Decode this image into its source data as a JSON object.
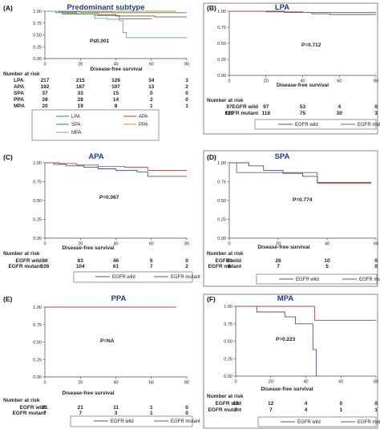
{
  "colors": {
    "axis": "#444444",
    "frame": "#555555",
    "title": "#1f3c88",
    "egfr_wild": "#3e5a7d",
    "egfr_mutant": "#a84a4a",
    "lpa": "#3a6ea5",
    "apa": "#a43c3c",
    "spa": "#2e8b57",
    "ppa": "#c5a000",
    "mpa": "#6aa89e"
  },
  "chart_data": [
    {
      "panel": "(A)",
      "type": "line",
      "title": "Predominant subtype",
      "xlabel": "Disease-free survival",
      "ylabel": "",
      "xlim": [
        0,
        80
      ],
      "ylim": [
        0,
        1
      ],
      "xticks": [
        "0",
        "20",
        "40",
        "60",
        "80"
      ],
      "yticks": [
        "0.00",
        "0.25",
        "0.50",
        "0.75",
        "1.00"
      ],
      "pvalue": "P≤0.001",
      "series": [
        {
          "name": "LPA",
          "color_key": "lpa",
          "x": [
            0,
            8,
            20,
            38,
            60,
            80
          ],
          "y": [
            1.0,
            0.99,
            0.98,
            0.97,
            0.97,
            0.97
          ]
        },
        {
          "name": "APA",
          "color_key": "apa",
          "x": [
            0,
            6,
            18,
            30,
            40,
            62,
            80
          ],
          "y": [
            1.0,
            0.97,
            0.95,
            0.93,
            0.9,
            0.88,
            0.88
          ]
        },
        {
          "name": "SPA",
          "color_key": "spa",
          "x": [
            0,
            10,
            28,
            42,
            60
          ],
          "y": [
            1.0,
            0.94,
            0.91,
            0.84,
            0.84
          ]
        },
        {
          "name": "PPA",
          "color_key": "ppa",
          "x": [
            0,
            74
          ],
          "y": [
            1.0,
            1.0
          ]
        },
        {
          "name": "MPA",
          "color_key": "mpa",
          "x": [
            0,
            12,
            28,
            35,
            42,
            44,
            46,
            80
          ],
          "y": [
            1.0,
            0.95,
            0.85,
            0.83,
            0.8,
            0.55,
            0.44,
            0.44
          ]
        }
      ],
      "risk": {
        "header": "Number at risk",
        "rows": [
          {
            "label": "LPA",
            "values": [
              "217",
              "215",
              "128",
              "34",
              "3"
            ]
          },
          {
            "label": "APA",
            "values": [
              "192",
              "187",
              "107",
              "13",
              "2"
            ]
          },
          {
            "label": "SPA",
            "values": [
              "37",
              "33",
              "15",
              "0",
              "0"
            ]
          },
          {
            "label": "PPA",
            "values": [
              "28",
              "28",
              "14",
              "2",
              "0"
            ]
          },
          {
            "label": "MPA",
            "values": [
              "20",
              "19",
              "8",
              "1",
              "1"
            ]
          }
        ]
      },
      "legend_rows": [
        [
          "LPA",
          "APA"
        ],
        [
          "SPA",
          "PPA"
        ],
        [
          "MPA"
        ]
      ]
    },
    {
      "panel": "(B)",
      "type": "line",
      "title": "LPA",
      "xlabel": "Disease-free survival",
      "ylabel": "",
      "xlim": [
        0,
        80
      ],
      "ylim": [
        0,
        1
      ],
      "xticks": [
        "0",
        "20",
        "40",
        "60",
        "80"
      ],
      "yticks": [
        "0.00",
        "0.25",
        "0.50",
        "0.75",
        "1.00"
      ],
      "pvalue": "P=0.712",
      "series": [
        {
          "name": "EGFR wild",
          "color_key": "egfr_wild",
          "x": [
            0,
            30,
            45,
            55,
            65,
            80
          ],
          "y": [
            1.0,
            0.98,
            0.96,
            0.95,
            0.95,
            0.95
          ]
        },
        {
          "name": "EGFR mutant",
          "color_key": "egfr_mutant",
          "x": [
            0,
            20,
            40,
            60,
            80
          ],
          "y": [
            1.0,
            0.99,
            0.98,
            0.98,
            0.98
          ]
        }
      ],
      "risk": {
        "header": "Number at risk",
        "rows": [
          {
            "label": "EGFR wild",
            "values": [
              "97",
              "97",
              "53",
              "4",
              "0"
            ]
          },
          {
            "label": "EGFR mutant",
            "values": [
              "120",
              "118",
              "75",
              "30",
              "3"
            ]
          }
        ]
      },
      "legend_rows": [
        [
          "EGFR wild",
          "EGFR mutant"
        ]
      ]
    },
    {
      "panel": "(C)",
      "type": "line",
      "title": "APA",
      "xlabel": "Disease-free survival",
      "ylabel": "",
      "xlim": [
        0,
        80
      ],
      "ylim": [
        0,
        1
      ],
      "xticks": [
        "0",
        "20",
        "40",
        "60",
        "80"
      ],
      "yticks": [
        "0.00",
        "0.25",
        "0.50",
        "0.75",
        "1.00"
      ],
      "pvalue": "P=0.067",
      "series": [
        {
          "name": "EGFR wild",
          "color_key": "egfr_wild",
          "x": [
            0,
            5,
            12,
            22,
            30,
            40,
            52,
            58,
            80
          ],
          "y": [
            1.0,
            0.98,
            0.96,
            0.94,
            0.92,
            0.9,
            0.88,
            0.82,
            0.82
          ]
        },
        {
          "name": "EGFR mutant",
          "color_key": "egfr_mutant",
          "x": [
            0,
            8,
            18,
            30,
            45,
            58,
            80
          ],
          "y": [
            1.0,
            0.99,
            0.97,
            0.95,
            0.94,
            0.9,
            0.9
          ]
        }
      ],
      "risk": {
        "header": "Number at risk",
        "rows": [
          {
            "label": "EGFR wild",
            "values": [
              "86",
              "83",
              "46",
              "6",
              "0"
            ]
          },
          {
            "label": "EGFR mutant",
            "values": [
              "106",
              "104",
              "61",
              "7",
              "2"
            ]
          }
        ]
      },
      "legend_rows": [
        [
          "EGFR wild",
          "EGFR mutant"
        ]
      ]
    },
    {
      "panel": "(D)",
      "type": "line",
      "title": "SPA",
      "xlabel": "Disease-free survival",
      "ylabel": "",
      "xlim": [
        0,
        60
      ],
      "ylim": [
        0,
        1
      ],
      "xticks": [
        "0",
        "20",
        "40",
        "60"
      ],
      "yticks": [
        "0.00",
        "0.25",
        "0.50",
        "0.75",
        "1.00"
      ],
      "pvalue": "P=0.774",
      "series": [
        {
          "name": "EGFR wild",
          "color_key": "egfr_wild",
          "x": [
            0,
            8,
            14,
            22,
            30,
            36,
            58
          ],
          "y": [
            1.0,
            0.96,
            0.9,
            0.86,
            0.82,
            0.74,
            0.74
          ]
        },
        {
          "name": "EGFR mutant",
          "color_key": "egfr_mutant",
          "x": [
            0,
            3,
            30,
            36,
            58
          ],
          "y": [
            1.0,
            0.87,
            0.87,
            0.73,
            0.73
          ]
        }
      ],
      "risk": {
        "header": "Number at risk",
        "rows": [
          {
            "label": "EGFR wild",
            "values": [
              "29",
              "26",
              "10",
              "0"
            ]
          },
          {
            "label": "EGFR mutant",
            "values": [
              "8",
              "7",
              "5",
              "0"
            ]
          }
        ]
      },
      "legend_rows": [
        [
          "EGFR wild",
          "EGFR mutant"
        ]
      ]
    },
    {
      "panel": "(E)",
      "type": "line",
      "title": "PPA",
      "xlabel": "Disease-free survival",
      "ylabel": "",
      "xlim": [
        0,
        80
      ],
      "ylim": [
        0,
        1
      ],
      "xticks": [
        "0",
        "20",
        "40",
        "60",
        "80"
      ],
      "yticks": [
        "0.00",
        "0.25",
        "0.50",
        "0.75",
        "1.00"
      ],
      "pvalue": "P=NA",
      "series": [
        {
          "name": "EGFR wild",
          "color_key": "egfr_wild",
          "x": [
            0,
            74
          ],
          "y": [
            1.0,
            1.0
          ]
        },
        {
          "name": "EGFR mutant",
          "color_key": "egfr_mutant",
          "x": [
            0,
            74
          ],
          "y": [
            1.0,
            1.0
          ]
        }
      ],
      "risk": {
        "header": "Number at risk",
        "rows": [
          {
            "label": "EGFR wild",
            "values": [
              "21",
              "21",
              "11",
              "1",
              "0"
            ]
          },
          {
            "label": "EGFR mutant",
            "values": [
              "7",
              "7",
              "3",
              "1",
              "0"
            ]
          }
        ]
      },
      "legend_rows": [
        [
          "EGFR wild",
          "EGFR mutant"
        ]
      ]
    },
    {
      "panel": "(F)",
      "type": "line",
      "title": "MPA",
      "xlabel": "Disease-free survival",
      "ylabel": "",
      "xlim": [
        0,
        80
      ],
      "ylim": [
        0,
        1
      ],
      "xticks": [
        "0",
        "20",
        "40",
        "60",
        "80"
      ],
      "yticks": [
        "0.00",
        "0.25",
        "0.50",
        "0.75",
        "1.00"
      ],
      "pvalue": "P=0.223",
      "series": [
        {
          "name": "EGFR wild",
          "color_key": "egfr_wild",
          "x": [
            0,
            12,
            28,
            34,
            43,
            44,
            45,
            46
          ],
          "y": [
            1.0,
            0.92,
            0.85,
            0.75,
            0.75,
            0.38,
            0.38,
            0.0
          ]
        },
        {
          "name": "EGFR mutant",
          "color_key": "egfr_mutant",
          "x": [
            0,
            37,
            45,
            80
          ],
          "y": [
            1.0,
            1.0,
            0.8,
            0.8
          ]
        }
      ],
      "risk": {
        "header": "Number at risk",
        "rows": [
          {
            "label": "EGFR wild",
            "values": [
              "13",
              "12",
              "4",
              "0",
              "0"
            ]
          },
          {
            "label": "EGFR mutant",
            "values": [
              "7",
              "7",
              "4",
              "1",
              "1"
            ]
          }
        ]
      },
      "legend_rows": [
        [
          "EGFR wild",
          "EGFR mutant"
        ]
      ]
    }
  ]
}
